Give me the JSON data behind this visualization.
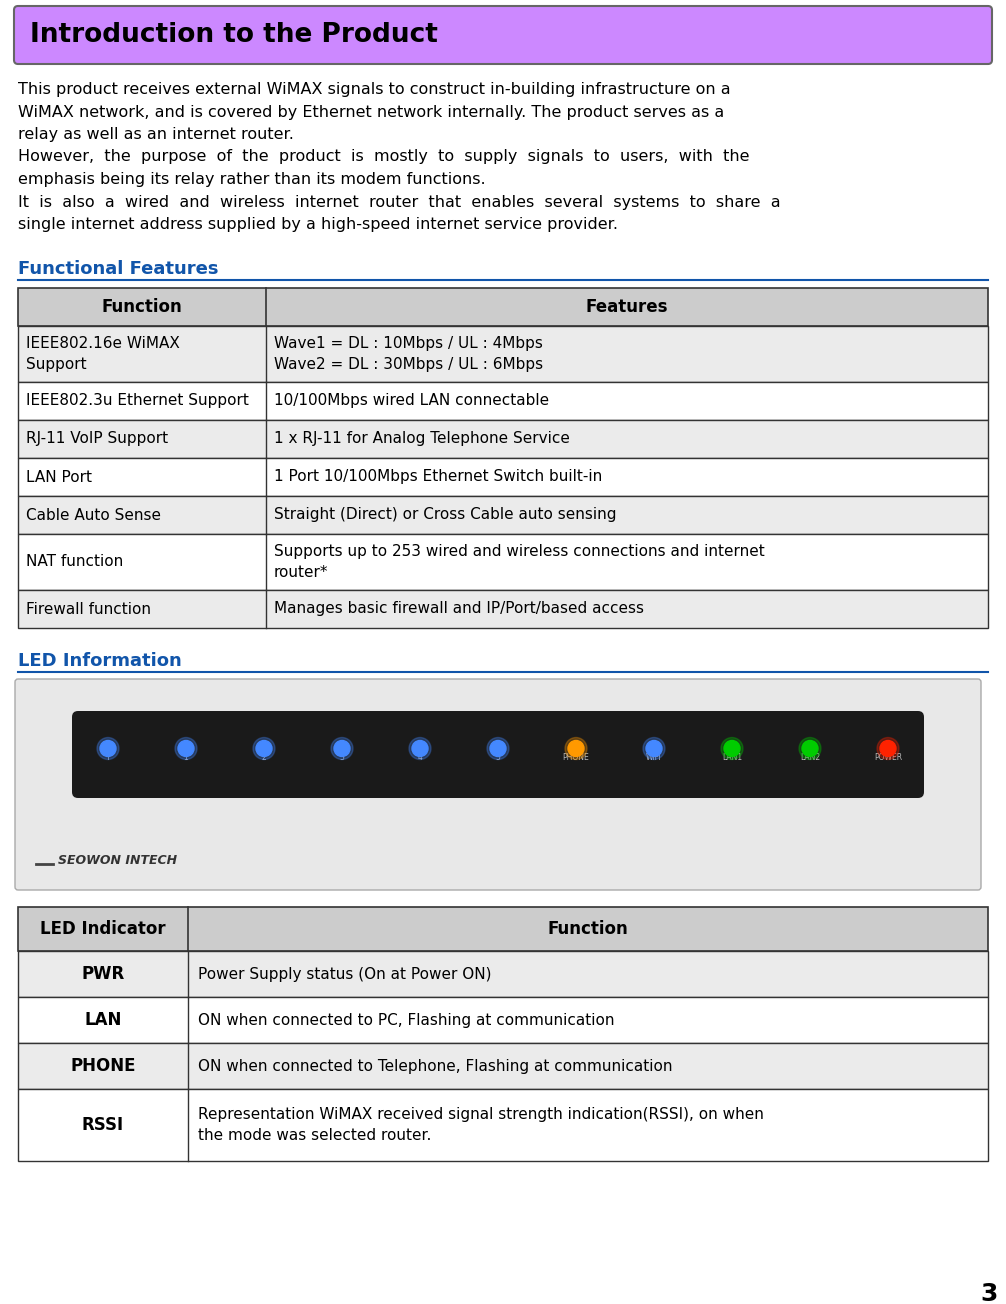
{
  "title": "Introduction to the Product",
  "title_bg": "#CC88FF",
  "title_text_color": "#000000",
  "body_text": [
    "This product receives external WiMAX signals to construct in-building infrastructure on a",
    "WiMAX network, and is covered by Ethernet network internally. The product serves as a",
    "relay as well as an internet router.",
    "However,  the  purpose  of  the  product  is  mostly  to  supply  signals  to  users,  with  the",
    "emphasis being its relay rather than its modem functions.",
    "It  is  also  a  wired  and  wireless  internet  router  that  enables  several  systems  to  share  a",
    "single internet address supplied by a high-speed internet service provider."
  ],
  "section1_title": "Functional Features",
  "section2_title": "LED Information",
  "func_table_headers": [
    "Function",
    "Features"
  ],
  "func_table_rows": [
    [
      "IEEE802.16e WiMAX\nSupport",
      "Wave1 = DL : 10Mbps / UL : 4Mbps\nWave2 = DL : 30Mbps / UL : 6Mbps"
    ],
    [
      "IEEE802.3u Ethernet Support",
      "10/100Mbps wired LAN connectable"
    ],
    [
      "RJ-11 VoIP Support",
      "1 x RJ-11 for Analog Telephone Service"
    ],
    [
      "LAN Port",
      "1 Port 10/100Mbps Ethernet Switch built-in"
    ],
    [
      "Cable Auto Sense",
      "Straight (Direct) or Cross Cable auto sensing"
    ],
    [
      "NAT function",
      "Supports up to 253 wired and wireless connections and internet\nrouter*"
    ],
    [
      "Firewall function",
      "Manages basic firewall and IP/Port/based access"
    ]
  ],
  "led_table_headers": [
    "LED Indicator",
    "Function"
  ],
  "led_table_rows": [
    [
      "PWR",
      "Power Supply status (On at Power ON)"
    ],
    [
      "LAN",
      "ON when connected to PC, Flashing at communication"
    ],
    [
      "PHONE",
      "ON when connected to Telephone, Flashing at communication"
    ],
    [
      "RSSI",
      "Representation WiMAX received signal strength indication(RSSI), on when\nthe mode was selected router."
    ]
  ],
  "section_title_color": "#1155AA",
  "header_bg": "#CCCCCC",
  "header_text_color": "#000000",
  "table_border_color": "#333333",
  "row_alt_bg": "#EBEBEB",
  "row_bg": "#FFFFFF",
  "page_number": "3",
  "page_bg": "#FFFFFF"
}
